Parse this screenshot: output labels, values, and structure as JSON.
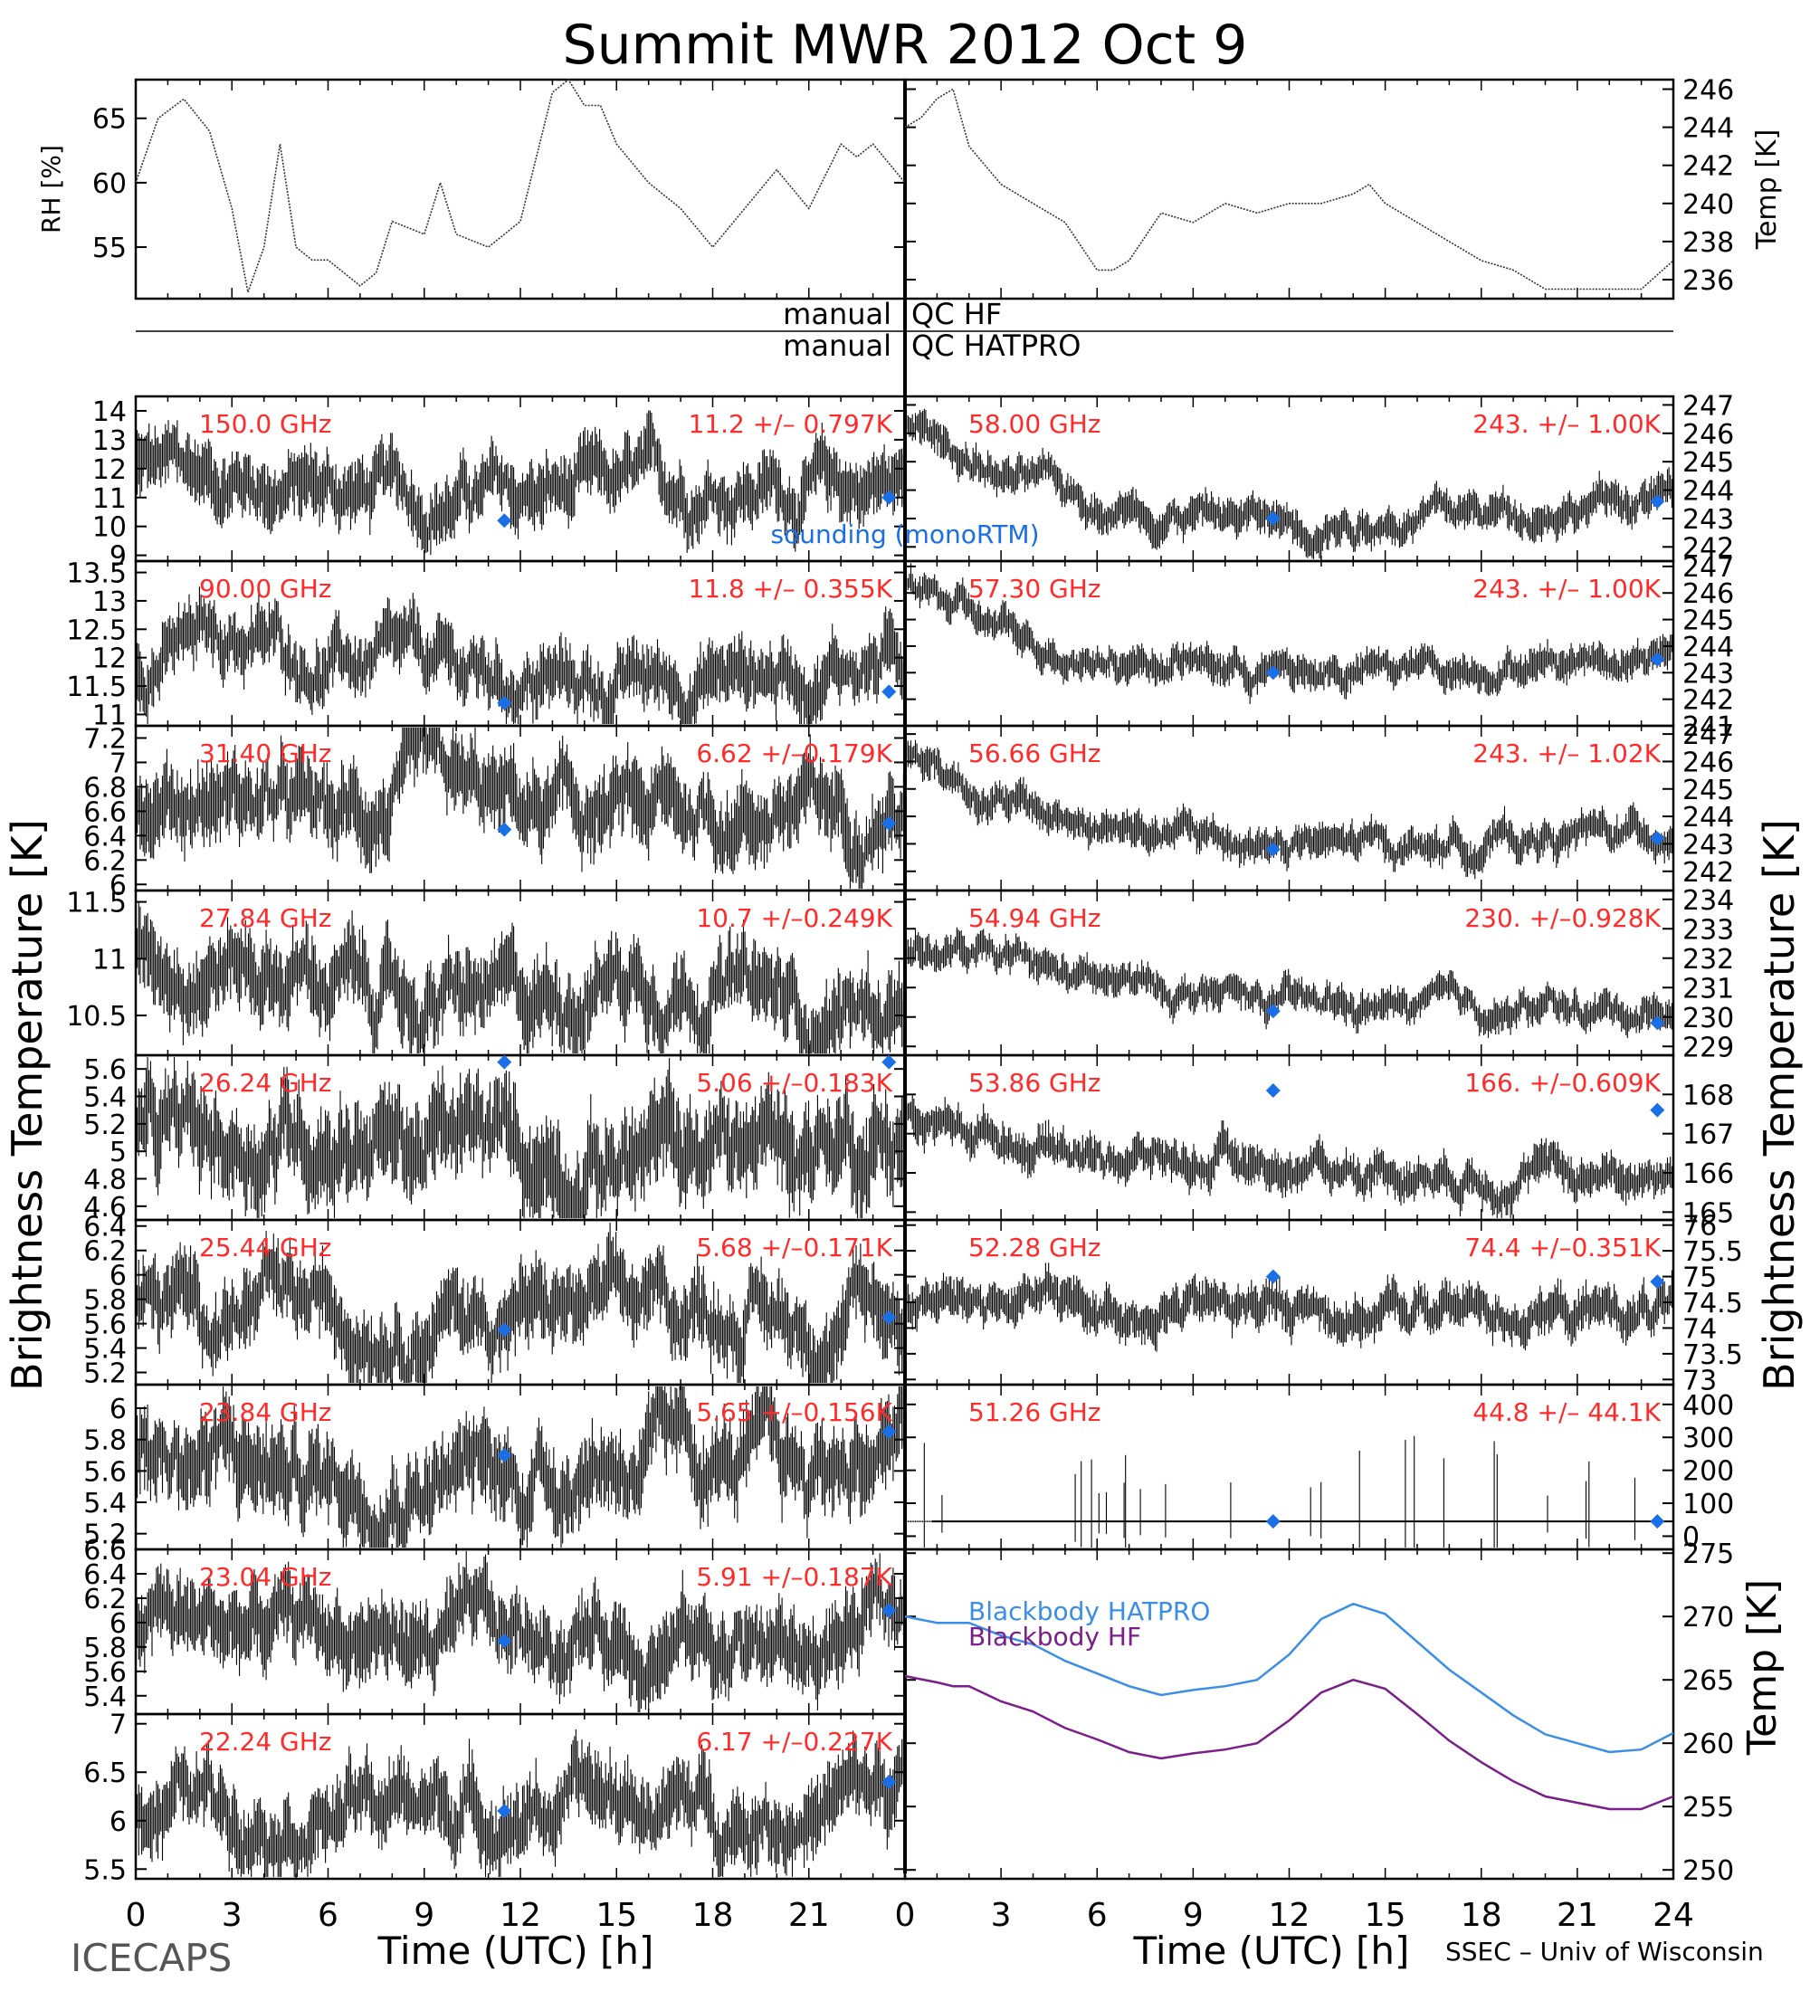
{
  "figure": {
    "title": "Summit  MWR  2012  Oct   9",
    "left_ylabel": "Brightness  Temperature  [K]",
    "right_ylabel": "Brightness  Temperature  [K]",
    "xlabel": "Time  (UTC)  [h]",
    "footer_left": "ICECAPS",
    "footer_right": "SSEC – Univ of Wisconsin",
    "qc_labels": [
      "manual",
      "QC HF",
      "manual",
      "QC HATPRO"
    ],
    "x_ticks_left": [
      "0",
      "3",
      "6",
      "9",
      "12",
      "15",
      "18",
      "21"
    ],
    "x_ticks_right": [
      "0",
      "3",
      "6",
      "9",
      "12",
      "15",
      "18",
      "21",
      "24"
    ]
  },
  "colors": {
    "data": "#000000",
    "label": "#ff2a2a",
    "sounding": "#1a6fe6",
    "hatpro": "#3a8ee6",
    "hf": "#7a1f8a"
  },
  "chart_data": [
    {
      "type": "line",
      "panel": "met",
      "ylabel": "RH [%]",
      "ylim": [
        51,
        68
      ],
      "yticks": [
        55,
        60,
        65
      ],
      "x": [
        0,
        0.7,
        1.5,
        2.3,
        3,
        3.5,
        4,
        4.5,
        5,
        5.5,
        6,
        7,
        7.5,
        8,
        9,
        9.5,
        10,
        11,
        12,
        13,
        13.5,
        14,
        14.5,
        15,
        16,
        17,
        18,
        19,
        20,
        21,
        22,
        22.5,
        23,
        24
      ],
      "values": [
        60,
        65,
        66.5,
        64,
        58,
        51.5,
        55,
        63,
        55,
        54,
        54,
        52,
        53,
        57,
        56,
        60,
        56,
        55,
        57,
        67,
        68,
        66,
        66,
        63,
        60,
        58,
        55,
        58,
        61,
        58,
        63,
        62,
        63,
        60
      ]
    },
    {
      "type": "line",
      "panel": "met",
      "ylabel": "Temp [K]",
      "ylim": [
        235,
        246.5
      ],
      "yticks": [
        236,
        238,
        240,
        242,
        244,
        246
      ],
      "x": [
        0,
        0.5,
        1,
        1.5,
        2,
        3,
        4,
        5,
        6,
        6.5,
        7,
        8,
        9,
        10,
        11,
        12,
        13,
        14,
        14.5,
        15,
        16,
        17,
        18,
        19,
        20,
        21,
        22,
        23,
        24
      ],
      "values": [
        244,
        244.5,
        245.5,
        246,
        243,
        241,
        240,
        239,
        236.5,
        236.5,
        237,
        239.5,
        239,
        240,
        239.5,
        240,
        240,
        240.5,
        241,
        240,
        239,
        238,
        237,
        236.5,
        235.5,
        235.5,
        235.5,
        235.5,
        237
      ]
    },
    {
      "type": "scatter",
      "panel": "left",
      "label": "150.0 GHz",
      "stat": "11.2 +/– 0.797K",
      "ylim": [
        8.8,
        14.5
      ],
      "yticks": [
        9,
        10,
        11,
        12,
        13,
        14
      ],
      "base": [
        12,
        11.7,
        11.3,
        11,
        11,
        11.2,
        11.5,
        11.3,
        11.5
      ],
      "amplitude": 1.6,
      "sounding": [
        [
          11.5,
          10.2
        ],
        [
          23.5,
          11
        ]
      ],
      "note": "sounding (monoRTM)"
    },
    {
      "type": "scatter",
      "panel": "left",
      "label": "90.00 GHz",
      "stat": "11.8 +/– 0.355K",
      "ylim": [
        10.8,
        13.7
      ],
      "yticks": [
        11,
        11.5,
        12,
        12.5,
        13,
        13.5
      ],
      "base": [
        12,
        12.4,
        11.9,
        11.8,
        11.6,
        11.5,
        11.7,
        11.8,
        12
      ],
      "amplitude": 0.8,
      "sounding": [
        [
          11.5,
          11.2
        ],
        [
          23.5,
          11.4
        ]
      ]
    },
    {
      "type": "scatter",
      "panel": "left",
      "label": "31.40 GHz",
      "stat": "6.62 +/–0.179K",
      "ylim": [
        5.95,
        7.3
      ],
      "yticks": [
        6,
        6.2,
        6.4,
        6.6,
        6.8,
        7,
        7.2
      ],
      "base": [
        6.7,
        6.75,
        6.5,
        6.75,
        6.6,
        6.55,
        6.6,
        6.6,
        6.65
      ],
      "amplitude": 0.45,
      "sounding": [
        [
          11.5,
          6.45
        ],
        [
          23.5,
          6.5
        ]
      ]
    },
    {
      "type": "scatter",
      "panel": "left",
      "label": "27.84 GHz",
      "stat": "10.7 +/–0.249K",
      "ylim": [
        10.15,
        11.6
      ],
      "yticks": [
        10.5,
        11,
        11.5
      ],
      "base": [
        11.1,
        11,
        10.8,
        10.6,
        10.6,
        10.9,
        10.8,
        10.5,
        10.6
      ],
      "amplitude": 0.5,
      "sounding": []
    },
    {
      "type": "scatter",
      "panel": "left",
      "label": "26.24 GHz",
      "stat": "5.06 +/–0.183K",
      "ylim": [
        4.5,
        5.7
      ],
      "yticks": [
        4.6,
        4.8,
        5,
        5.2,
        5.4,
        5.6
      ],
      "base": [
        5,
        5.05,
        5.2,
        5.05,
        5,
        4.95,
        5,
        5.1,
        5.15
      ],
      "amplitude": 0.5,
      "sounding": [
        [
          11.5,
          5.65
        ],
        [
          23.5,
          5.65
        ]
      ]
    },
    {
      "type": "scatter",
      "panel": "left",
      "label": "25.44 GHz",
      "stat": "5.68 +/–0.171K",
      "ylim": [
        5.1,
        6.45
      ],
      "yticks": [
        5.2,
        5.4,
        5.6,
        5.8,
        6,
        6.2,
        6.4
      ],
      "base": [
        5.75,
        5.7,
        5.7,
        5.65,
        5.7,
        5.7,
        5.75,
        5.6,
        5.7
      ],
      "amplitude": 0.45,
      "sounding": [
        [
          11.5,
          5.55
        ],
        [
          23.5,
          5.65
        ]
      ]
    },
    {
      "type": "scatter",
      "panel": "left",
      "label": "23.84 GHz",
      "stat": "5.65 +/–0.156K",
      "ylim": [
        5.1,
        6.15
      ],
      "yticks": [
        5.2,
        5.4,
        5.6,
        5.8,
        6
      ],
      "base": [
        5.75,
        5.65,
        5.55,
        5.6,
        5.55,
        5.7,
        5.65,
        5.6,
        5.8
      ],
      "amplitude": 0.4,
      "sounding": [
        [
          11.5,
          5.7
        ],
        [
          23.5,
          5.85
        ]
      ]
    },
    {
      "type": "scatter",
      "panel": "left",
      "label": "23.04 GHz",
      "stat": "5.91 +/–0.187K",
      "ylim": [
        5.25,
        6.6
      ],
      "yticks": [
        5.4,
        5.6,
        5.8,
        6,
        6.2,
        6.4,
        6.6
      ],
      "base": [
        6.05,
        5.95,
        5.95,
        5.85,
        5.85,
        5.95,
        5.85,
        5.75,
        6.1
      ],
      "amplitude": 0.45,
      "sounding": [
        [
          11.5,
          5.85
        ],
        [
          23.5,
          6.1
        ]
      ]
    },
    {
      "type": "scatter",
      "panel": "left",
      "label": "22.24 GHz",
      "stat": "6.17 +/–0.227K",
      "ylim": [
        5.4,
        7.1
      ],
      "yticks": [
        5.5,
        6,
        6.5,
        7
      ],
      "base": [
        6.3,
        6.2,
        6.1,
        6.2,
        6.1,
        6.2,
        6.1,
        6.1,
        6.35
      ],
      "amplitude": 0.55,
      "sounding": [
        [
          11.5,
          6.1
        ],
        [
          23.5,
          6.4
        ]
      ]
    },
    {
      "type": "scatter",
      "panel": "right",
      "label": "58.00 GHz",
      "stat": "243. +/– 1.00K",
      "ylim": [
        241.5,
        247.3
      ],
      "yticks": [
        242,
        243,
        244,
        245,
        246,
        247
      ],
      "base": [
        246.5,
        244.5,
        243.6,
        243.2,
        242.9,
        243,
        243.2,
        243.5,
        243.8
      ],
      "amplitude": 0.9,
      "sounding": [
        [
          11.5,
          243
        ],
        [
          23.5,
          243.6
        ]
      ]
    },
    {
      "type": "scatter",
      "panel": "right",
      "label": "57.30 GHz",
      "stat": "243. +/– 1.00K",
      "ylim": [
        241,
        247.2
      ],
      "yticks": [
        241,
        242,
        243,
        244,
        245,
        246,
        247
      ],
      "base": [
        246.5,
        244.5,
        243.6,
        243.4,
        243,
        243,
        243.3,
        243.6,
        243.9
      ],
      "amplitude": 0.9,
      "sounding": [
        [
          11.5,
          243
        ],
        [
          23.5,
          243.5
        ]
      ]
    },
    {
      "type": "scatter",
      "panel": "right",
      "label": "56.66 GHz",
      "stat": "243. +/– 1.02K",
      "ylim": [
        241.3,
        247.3
      ],
      "yticks": [
        242,
        243,
        244,
        245,
        246,
        247
      ],
      "base": [
        246.5,
        244.5,
        243.5,
        243.3,
        242.9,
        242.9,
        243.1,
        243.3,
        243.5
      ],
      "amplitude": 0.9,
      "sounding": [
        [
          11.5,
          242.8
        ],
        [
          23.5,
          243.2
        ]
      ]
    },
    {
      "type": "scatter",
      "panel": "right",
      "label": "54.94 GHz",
      "stat": "230. +/–0.928K",
      "ylim": [
        228.7,
        234.3
      ],
      "yticks": [
        229,
        230,
        231,
        232,
        233,
        234
      ],
      "base": [
        232.5,
        231.8,
        231.2,
        230.8,
        230.4,
        230.3,
        230.3,
        230.2,
        230.3
      ],
      "amplitude": 0.8,
      "sounding": [
        [
          11.5,
          230.2
        ],
        [
          23.5,
          229.8
        ]
      ]
    },
    {
      "type": "scatter",
      "panel": "right",
      "label": "53.86 GHz",
      "stat": "166. +/–0.609K",
      "ylim": [
        164.8,
        169
      ],
      "yticks": [
        165,
        166,
        167,
        168
      ],
      "base": [
        167.4,
        167,
        166.5,
        166.3,
        166.2,
        166.1,
        166,
        166,
        166
      ],
      "amplitude": 0.7,
      "sounding": [
        [
          11.5,
          168.1
        ],
        [
          23.5,
          167.6
        ]
      ]
    },
    {
      "type": "scatter",
      "panel": "right",
      "label": "52.28 GHz",
      "stat": "74.4 +/–0.351K",
      "ylim": [
        72.9,
        76.1
      ],
      "yticks": [
        73,
        73.5,
        74,
        74.5,
        75,
        75.5,
        76
      ],
      "base": [
        74.5,
        74.5,
        74.4,
        74.4,
        74.4,
        74.3,
        74.4,
        74.3,
        74.4
      ],
      "amplitude": 0.6,
      "sounding": [
        [
          11.5,
          75
        ],
        [
          23.5,
          74.9
        ]
      ]
    },
    {
      "type": "scatter",
      "panel": "right",
      "label": "51.26 GHz",
      "stat": "44.8 +/– 44.1K",
      "ylim": [
        -40,
        460
      ],
      "yticks": [
        0,
        100,
        200,
        300,
        400
      ],
      "base": [
        44.8,
        44.8,
        44.8,
        44.8,
        44.8,
        44.8,
        44.8,
        44.8,
        44.8
      ],
      "amplitude": 2,
      "sounding": [
        [
          11.5,
          44.8
        ],
        [
          23.5,
          44.8
        ]
      ]
    },
    {
      "type": "line",
      "panel": "blackbody",
      "ylabel": "Temp [K]",
      "ylim": [
        249.3,
        275.3
      ],
      "yticks": [
        250,
        255,
        260,
        265,
        270,
        275
      ],
      "x": [
        0,
        1,
        1.5,
        2,
        3,
        4,
        5,
        6,
        7,
        8,
        9,
        10,
        11,
        12,
        13,
        14,
        15,
        16,
        17,
        18,
        19,
        20,
        21,
        22,
        23,
        24
      ],
      "series": [
        {
          "name": "Blackbody  HATPRO",
          "values": [
            270,
            269.5,
            269.5,
            269.5,
            268.5,
            267.8,
            266.5,
            265.5,
            264.5,
            263.8,
            264.2,
            264.5,
            265,
            267,
            269.8,
            271,
            270.2,
            268,
            265.8,
            264,
            262.2,
            260.7,
            260,
            259.3,
            259.5,
            260.8
          ]
        },
        {
          "name": "Blackbody  HF",
          "values": [
            265.3,
            264.8,
            264.5,
            264.5,
            263.3,
            262.5,
            261.2,
            260.3,
            259.3,
            258.8,
            259.2,
            259.5,
            260,
            261.8,
            264,
            265,
            264.3,
            262.3,
            260.2,
            258.5,
            257,
            255.8,
            255.3,
            254.8,
            254.8,
            255.8
          ]
        }
      ]
    }
  ]
}
